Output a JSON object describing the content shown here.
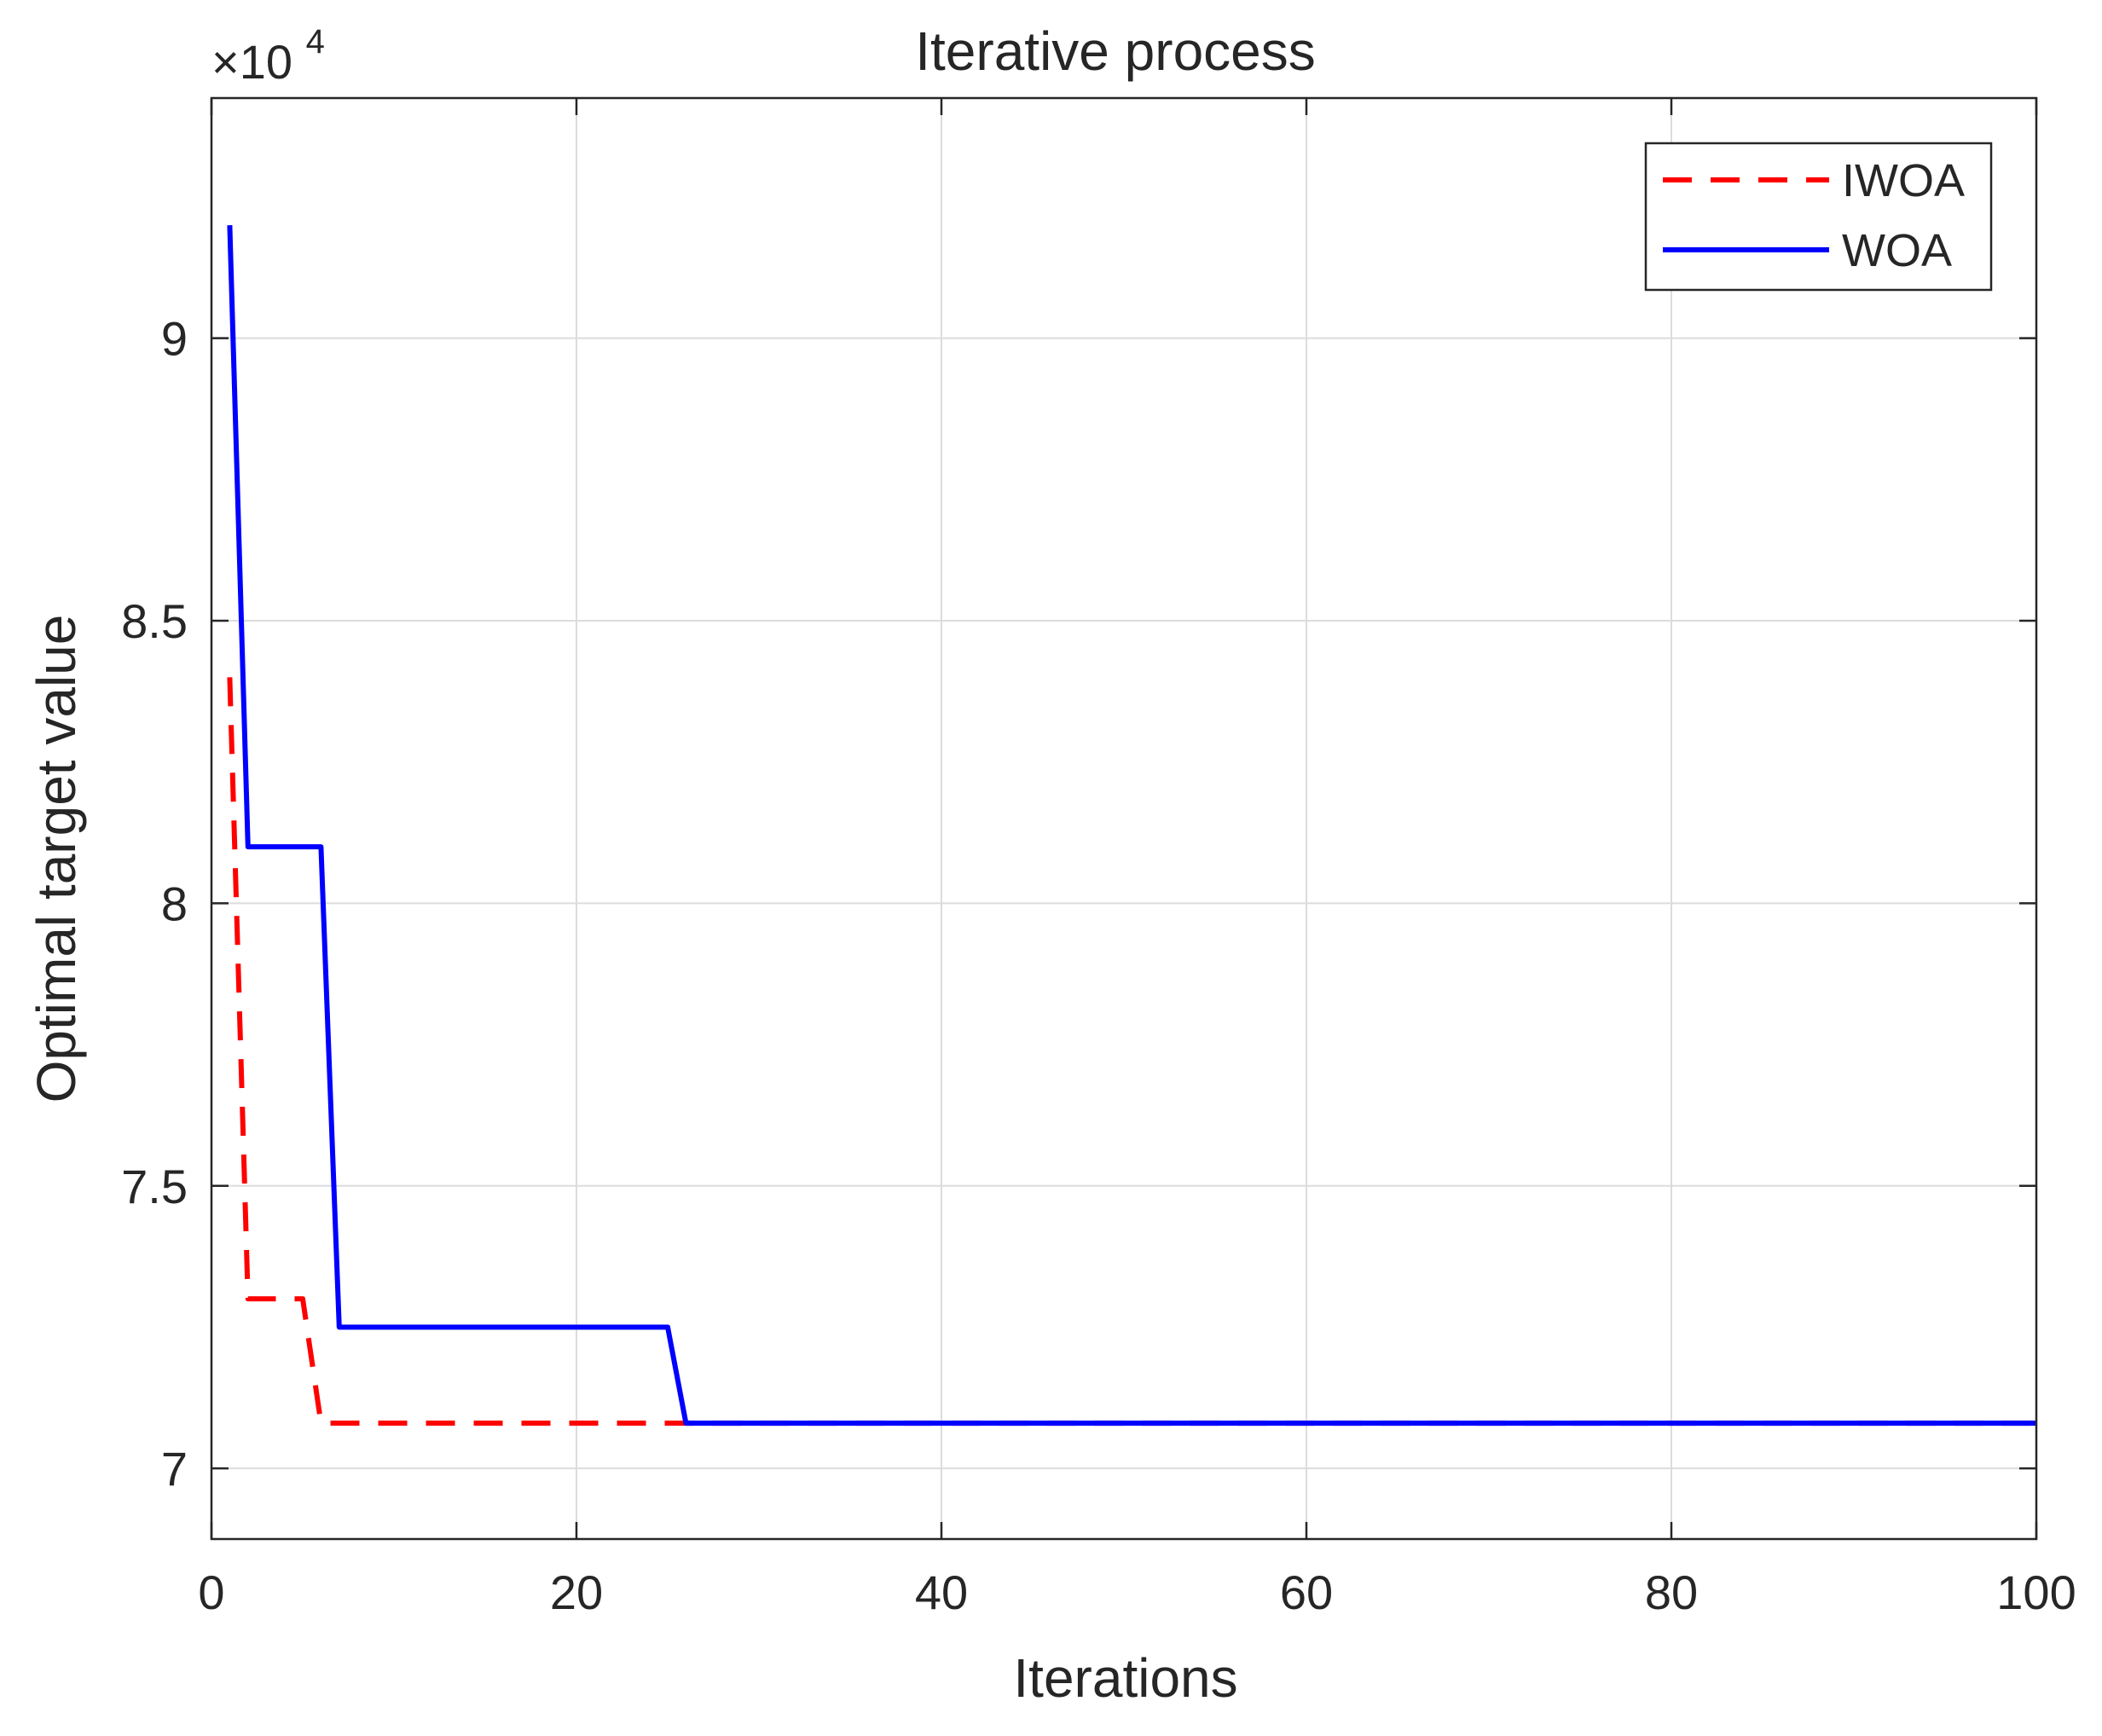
{
  "chart_data": {
    "type": "line",
    "title": "Iterative process",
    "xlabel": "Iterations",
    "ylabel": "Optimal target value",
    "xlim": [
      0,
      100
    ],
    "ylim": [
      68750,
      94250
    ],
    "y_multiplier": {
      "prefix": "×10",
      "exponent": "4"
    },
    "x_ticks": [
      0,
      20,
      40,
      60,
      80,
      100
    ],
    "x_tick_labels": [
      "0",
      "20",
      "40",
      "60",
      "80",
      "100"
    ],
    "y_ticks": [
      70000,
      75000,
      80000,
      85000,
      90000
    ],
    "y_tick_labels": [
      "7",
      "7.5",
      "8",
      "8.5",
      "9"
    ],
    "grid": true,
    "legend_position": "top-right",
    "series": [
      {
        "name": "IWOA",
        "color": "#ff0000",
        "line_style": "dashed",
        "x": [
          1,
          2,
          5,
          6,
          100
        ],
        "y": [
          84000,
          73000,
          73000,
          70800,
          70800
        ]
      },
      {
        "name": "WOA",
        "color": "#0000ff",
        "line_style": "solid",
        "x": [
          1,
          2,
          6,
          7,
          25,
          26,
          100
        ],
        "y": [
          92000,
          81000,
          81000,
          72500,
          72500,
          70800,
          70800
        ]
      }
    ]
  }
}
